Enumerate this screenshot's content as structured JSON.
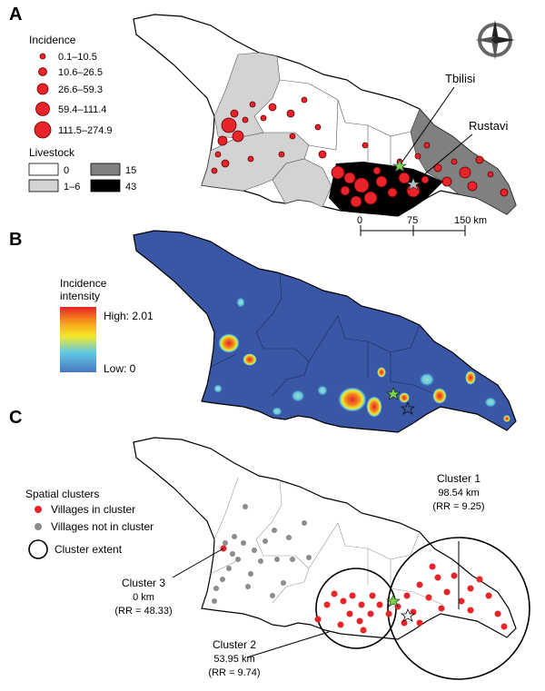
{
  "panels": {
    "a": {
      "letter": "A",
      "incidence": {
        "title": "Incidence",
        "classes": [
          "0.1–10.5",
          "10.6–26.5",
          "26.6–59.3",
          "59.4–111.4",
          "111.5–274.9"
        ]
      },
      "livestock": {
        "title": "Livestock",
        "classes": [
          {
            "label": "0",
            "color": "#ffffff"
          },
          {
            "label": "1–6",
            "color": "#d3d3d3"
          },
          {
            "label": "15",
            "color": "#808080"
          },
          {
            "label": "43",
            "color": "#000000"
          }
        ]
      },
      "cities": {
        "tbilisi": "Tbilisi",
        "rustavi": "Rustavi"
      },
      "scale": {
        "ticks": [
          "0",
          "75",
          "150 km"
        ]
      }
    },
    "b": {
      "letter": "B",
      "legend": {
        "title_line1": "Incidence",
        "title_line2": "intensity",
        "high": "High: 2.01",
        "low": "Low: 0"
      }
    },
    "c": {
      "letter": "C",
      "legend": {
        "title": "Spatial clusters",
        "in_cluster": "Villages in cluster",
        "not_in_cluster": "Villages not in cluster",
        "extent": "Cluster extent"
      },
      "clusters": [
        {
          "name": "Cluster 1",
          "radius": "98.54 km",
          "rr": "(RR = 9.25)"
        },
        {
          "name": "Cluster 2",
          "radius": "53.95 km",
          "rr": "(RR = 9.74)"
        },
        {
          "name": "Cluster 3",
          "radius": "0 km",
          "rr": "(RR = 48.33)"
        }
      ]
    }
  },
  "colors": {
    "village_red": "#e8232a",
    "village_gray": "#8c8c8c",
    "heat_background": "#3a57a6",
    "star_green": "#7bd34a"
  }
}
